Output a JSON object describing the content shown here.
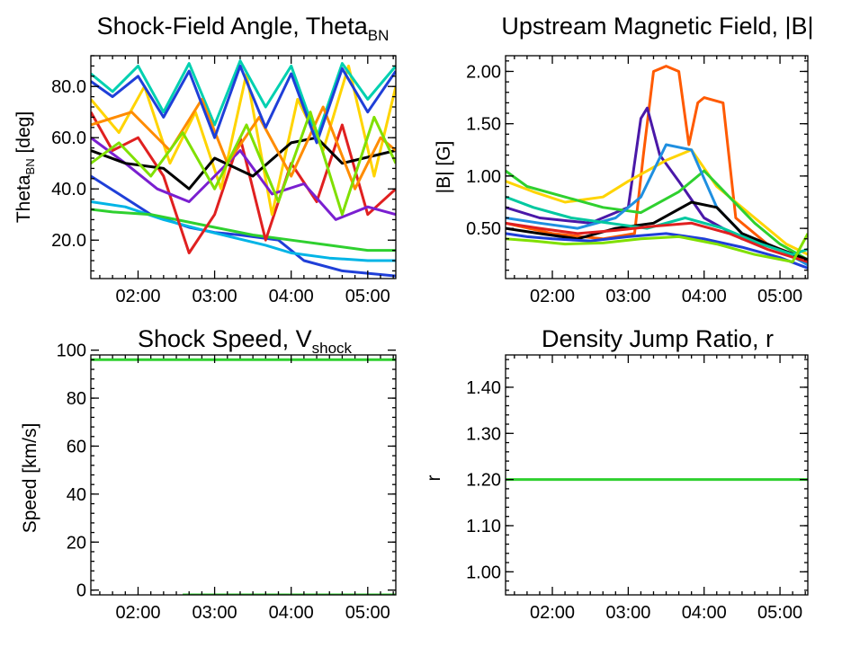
{
  "chart_data": [
    {
      "id": "theta",
      "type": "line",
      "title": "Shock-Field Angle, Theta",
      "title_sub": "BN",
      "ylabel": "Theta",
      "ylabel_sub": "BN",
      "ylabel_suffix": " [deg]",
      "xlim": [
        "01:23",
        "05:22"
      ],
      "ylim": [
        5,
        92
      ],
      "x_tick_labels": [
        "02:00",
        "03:00",
        "04:00",
        "05:00"
      ],
      "x_ticks": [
        "02:00",
        "03:00",
        "04:00",
        "05:00"
      ],
      "y_tick_labels": [
        "20.0",
        "40.0",
        "60.0",
        "80.0"
      ],
      "y_ticks": [
        20,
        40,
        60,
        80
      ],
      "grid": false,
      "series": [
        {
          "color": "#1f3fd8",
          "x": [
            "01:23",
            "01:45",
            "02:10",
            "02:40",
            "03:00",
            "03:20",
            "03:50",
            "04:10",
            "04:40",
            "05:22"
          ],
          "y": [
            45,
            38,
            30,
            25,
            23,
            22,
            20,
            12,
            8,
            6
          ]
        },
        {
          "color": "#00b4e6",
          "x": [
            "01:23",
            "01:50",
            "02:20",
            "02:50",
            "03:15",
            "03:40",
            "04:00",
            "04:30",
            "05:00",
            "05:22"
          ],
          "y": [
            35,
            33,
            28,
            24,
            21,
            18,
            15,
            13,
            12,
            12
          ]
        },
        {
          "color": "#2fd02f",
          "x": [
            "01:23",
            "01:40",
            "02:10",
            "02:30",
            "03:00",
            "03:30",
            "04:00",
            "04:30",
            "05:00",
            "05:22"
          ],
          "y": [
            32,
            31,
            30,
            28,
            25,
            22,
            20,
            18,
            16,
            16
          ]
        },
        {
          "color": "#e02020",
          "x": [
            "01:23",
            "01:40",
            "02:00",
            "02:20",
            "02:40",
            "03:00",
            "03:20",
            "03:40",
            "04:00",
            "04:20",
            "04:40",
            "05:00",
            "05:22"
          ],
          "y": [
            70,
            55,
            60,
            45,
            15,
            30,
            60,
            20,
            50,
            35,
            65,
            30,
            40
          ]
        },
        {
          "color": "#ffd400",
          "x": [
            "01:23",
            "01:45",
            "02:05",
            "02:25",
            "02:45",
            "03:05",
            "03:25",
            "03:45",
            "04:05",
            "04:25",
            "04:45",
            "05:05",
            "05:22"
          ],
          "y": [
            75,
            62,
            80,
            50,
            70,
            40,
            85,
            30,
            75,
            55,
            88,
            45,
            80
          ]
        },
        {
          "color": "#7a1fd0",
          "x": [
            "01:23",
            "01:50",
            "02:15",
            "02:40",
            "03:00",
            "03:20",
            "03:45",
            "04:10",
            "04:35",
            "05:00",
            "05:22"
          ],
          "y": [
            60,
            50,
            40,
            35,
            45,
            55,
            38,
            42,
            28,
            33,
            30
          ]
        },
        {
          "color": "#000000",
          "x": [
            "01:23",
            "01:50",
            "02:20",
            "02:40",
            "03:00",
            "03:30",
            "04:00",
            "04:20",
            "04:40",
            "05:22"
          ],
          "y": [
            55,
            50,
            48,
            40,
            52,
            45,
            58,
            60,
            50,
            55
          ]
        },
        {
          "color": "#00d0b0",
          "x": [
            "01:23",
            "01:40",
            "02:00",
            "02:20",
            "02:40",
            "03:00",
            "03:20",
            "03:40",
            "04:00",
            "04:20",
            "04:40",
            "05:00",
            "05:22"
          ],
          "y": [
            85,
            78,
            88,
            70,
            89,
            65,
            90,
            72,
            88,
            60,
            89,
            75,
            88
          ]
        },
        {
          "color": "#ff8c00",
          "x": [
            "01:23",
            "01:55",
            "02:25",
            "02:50",
            "03:10",
            "03:35",
            "04:00",
            "04:25",
            "04:50",
            "05:10",
            "05:22"
          ],
          "y": [
            65,
            70,
            55,
            75,
            50,
            68,
            45,
            72,
            40,
            60,
            55
          ]
        },
        {
          "color": "#1f3fd8",
          "x": [
            "01:23",
            "01:40",
            "02:00",
            "02:20",
            "02:40",
            "03:00",
            "03:20",
            "03:40",
            "04:00",
            "04:20",
            "04:40",
            "05:00",
            "05:22"
          ],
          "y": [
            82,
            76,
            84,
            68,
            86,
            60,
            88,
            64,
            85,
            58,
            87,
            70,
            86
          ]
        },
        {
          "color": "#80e000",
          "x": [
            "01:23",
            "01:45",
            "02:10",
            "02:35",
            "03:00",
            "03:25",
            "03:50",
            "04:15",
            "04:40",
            "05:05",
            "05:22"
          ],
          "y": [
            50,
            58,
            45,
            62,
            40,
            65,
            35,
            70,
            30,
            68,
            50
          ]
        }
      ]
    },
    {
      "id": "bmag",
      "type": "line",
      "title": "Upstream Magnetic Field, |B|",
      "ylabel": "|B| [G]",
      "xlim": [
        "01:23",
        "05:22"
      ],
      "ylim": [
        0.02,
        2.15
      ],
      "x_tick_labels": [
        "02:00",
        "03:00",
        "04:00",
        "05:00"
      ],
      "x_ticks": [
        "02:00",
        "03:00",
        "04:00",
        "05:00"
      ],
      "y_tick_labels": [
        "0.50",
        "1.00",
        "1.50",
        "2.00"
      ],
      "y_ticks": [
        0.5,
        1.0,
        1.5,
        2.0
      ],
      "grid": false,
      "series": [
        {
          "color": "#ff5a00",
          "x": [
            "01:23",
            "02:00",
            "02:40",
            "03:05",
            "03:12",
            "03:20",
            "03:30",
            "03:40",
            "03:48",
            "03:55",
            "04:00",
            "04:15",
            "04:25",
            "04:50",
            "05:22"
          ],
          "y": [
            0.55,
            0.45,
            0.4,
            0.45,
            1.2,
            2.0,
            2.05,
            2.0,
            1.3,
            1.7,
            1.75,
            1.7,
            0.6,
            0.35,
            0.2
          ]
        },
        {
          "color": "#4a18a8",
          "x": [
            "01:23",
            "01:50",
            "02:30",
            "03:00",
            "03:10",
            "03:15",
            "03:25",
            "03:40",
            "04:00",
            "04:30",
            "05:00",
            "05:22"
          ],
          "y": [
            0.7,
            0.6,
            0.55,
            0.7,
            1.55,
            1.65,
            1.2,
            0.95,
            0.6,
            0.4,
            0.3,
            0.2
          ]
        },
        {
          "color": "#ffd400",
          "x": [
            "01:23",
            "01:45",
            "02:10",
            "02:40",
            "03:00",
            "03:30",
            "03:50",
            "04:10",
            "04:40",
            "05:05",
            "05:22"
          ],
          "y": [
            0.95,
            0.85,
            0.75,
            0.8,
            0.95,
            1.15,
            1.25,
            0.9,
            0.6,
            0.35,
            0.25
          ]
        },
        {
          "color": "#2fd02f",
          "x": [
            "01:23",
            "01:40",
            "02:10",
            "02:40",
            "03:10",
            "03:40",
            "04:00",
            "04:20",
            "04:40",
            "05:00",
            "05:22"
          ],
          "y": [
            1.05,
            0.9,
            0.8,
            0.7,
            0.65,
            0.85,
            1.05,
            0.8,
            0.55,
            0.35,
            0.2
          ]
        },
        {
          "color": "#1f8fe0",
          "x": [
            "01:23",
            "01:50",
            "02:20",
            "02:50",
            "03:10",
            "03:30",
            "03:50",
            "04:10",
            "04:30",
            "05:00",
            "05:22"
          ],
          "y": [
            0.6,
            0.55,
            0.5,
            0.6,
            0.8,
            1.3,
            1.25,
            0.7,
            0.45,
            0.3,
            0.15
          ]
        },
        {
          "color": "#000000",
          "x": [
            "01:23",
            "01:50",
            "02:20",
            "02:50",
            "03:20",
            "03:50",
            "04:10",
            "04:30",
            "05:00",
            "05:22"
          ],
          "y": [
            0.5,
            0.45,
            0.4,
            0.5,
            0.55,
            0.75,
            0.7,
            0.45,
            0.3,
            0.2
          ]
        },
        {
          "color": "#00c8a0",
          "x": [
            "01:23",
            "01:45",
            "02:15",
            "02:45",
            "03:15",
            "03:45",
            "04:15",
            "04:45",
            "05:10",
            "05:22"
          ],
          "y": [
            0.8,
            0.7,
            0.6,
            0.55,
            0.5,
            0.6,
            0.5,
            0.35,
            0.25,
            0.3
          ]
        },
        {
          "color": "#1f3fd8",
          "x": [
            "01:23",
            "01:40",
            "02:00",
            "02:30",
            "03:00",
            "03:30",
            "04:00",
            "04:30",
            "05:00",
            "05:22"
          ],
          "y": [
            0.45,
            0.42,
            0.4,
            0.38,
            0.42,
            0.45,
            0.4,
            0.32,
            0.22,
            0.12
          ]
        },
        {
          "color": "#e02020",
          "x": [
            "01:23",
            "01:50",
            "02:20",
            "02:50",
            "03:20",
            "03:50",
            "04:20",
            "04:50",
            "05:22"
          ],
          "y": [
            0.55,
            0.5,
            0.45,
            0.48,
            0.52,
            0.55,
            0.45,
            0.3,
            0.18
          ]
        },
        {
          "color": "#80e000",
          "x": [
            "01:23",
            "01:45",
            "02:10",
            "02:40",
            "03:10",
            "03:40",
            "04:10",
            "04:40",
            "05:10",
            "05:22"
          ],
          "y": [
            0.4,
            0.38,
            0.35,
            0.36,
            0.4,
            0.42,
            0.35,
            0.25,
            0.18,
            0.45
          ]
        }
      ]
    },
    {
      "id": "vshock",
      "type": "line",
      "title": "Shock Speed, V",
      "title_sub": "shock",
      "ylabel": "Speed [km/s]",
      "xlim": [
        "01:23",
        "05:22"
      ],
      "ylim": [
        -2,
        98
      ],
      "x_tick_labels": [
        "02:00",
        "03:00",
        "04:00",
        "05:00"
      ],
      "x_ticks": [
        "02:00",
        "03:00",
        "04:00",
        "05:00"
      ],
      "y_tick_labels": [
        "0",
        "20",
        "40",
        "60",
        "80",
        "100"
      ],
      "y_ticks": [
        0,
        20,
        40,
        60,
        80,
        100
      ],
      "grid": false,
      "series": [
        {
          "color": "#2fd02f",
          "x": [
            "01:23",
            "05:22"
          ],
          "y": [
            96,
            96
          ]
        },
        {
          "color": "#2fd02f",
          "x": [
            "02:35",
            "05:22"
          ],
          "y": [
            -2,
            -2
          ]
        }
      ]
    },
    {
      "id": "ratio",
      "type": "line",
      "title": "Density Jump Ratio, r",
      "ylabel": "r",
      "xlim": [
        "01:23",
        "05:22"
      ],
      "ylim": [
        0.95,
        1.47
      ],
      "x_tick_labels": [
        "02:00",
        "03:00",
        "04:00",
        "05:00"
      ],
      "x_ticks": [
        "02:00",
        "03:00",
        "04:00",
        "05:00"
      ],
      "y_tick_labels": [
        "1.00",
        "1.10",
        "1.20",
        "1.30",
        "1.40"
      ],
      "y_ticks": [
        1.0,
        1.1,
        1.2,
        1.3,
        1.4
      ],
      "grid": false,
      "series": [
        {
          "color": "#2fd02f",
          "x": [
            "01:23",
            "05:22"
          ],
          "y": [
            1.2,
            1.2
          ]
        }
      ]
    }
  ]
}
